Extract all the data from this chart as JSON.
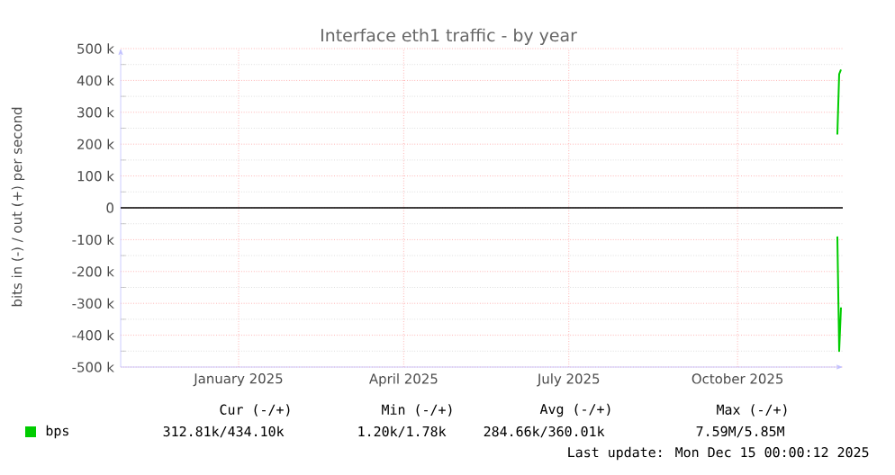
{
  "chart_data": {
    "type": "line",
    "title": "Interface eth1 traffic - by year",
    "ylabel": "bits in (-) / out (+) per second",
    "x": [
      "2025-12-12",
      "2025-12-13",
      "2025-12-14"
    ],
    "series": [
      {
        "name": "bps",
        "color": "#00cc00",
        "values": [
          230000,
          420000,
          434000
        ]
      },
      {
        "color": "#00cc00",
        "values": [
          -90000,
          -450000,
          -313000
        ]
      }
    ],
    "xlim": [
      "2024-11-12",
      "2025-12-15"
    ],
    "xticks": [
      {
        "value": "2025-01-16",
        "label": "January 2025"
      },
      {
        "value": "2025-04-17",
        "label": "April 2025"
      },
      {
        "value": "2025-07-17",
        "label": "July 2025"
      },
      {
        "value": "2025-10-18",
        "label": "October 2025"
      }
    ],
    "ylim": [
      -500000,
      500000
    ],
    "yticks": [
      {
        "value": -500000,
        "label": "-500 k"
      },
      {
        "value": -400000,
        "label": "-400 k"
      },
      {
        "value": -300000,
        "label": "-300 k"
      },
      {
        "value": -200000,
        "label": "-200 k"
      },
      {
        "value": -100000,
        "label": "-100 k"
      },
      0,
      {
        "value": 100000,
        "label": "100 k"
      },
      {
        "value": 200000,
        "label": "200 k"
      },
      {
        "value": 300000,
        "label": "300 k"
      },
      {
        "value": 400000,
        "label": "400 k"
      },
      {
        "value": 500000,
        "label": "500 k"
      }
    ],
    "ref_lines": [
      {
        "axis": "y",
        "value": 0,
        "color": "#000000"
      }
    ],
    "grid": true,
    "legend": "bottom left",
    "line_style": "solid",
    "annotations": [
      "Cur (-/+)",
      "Min (-/+)",
      "Avg (-/+)",
      "Max (-/+)",
      "312.81k/434.10k",
      "1.20k/1.78k",
      "284.66k/360.01k",
      "7.59M/5.85M",
      "Last update: Mon Dec 15 00:00:12 2025"
    ]
  }
}
